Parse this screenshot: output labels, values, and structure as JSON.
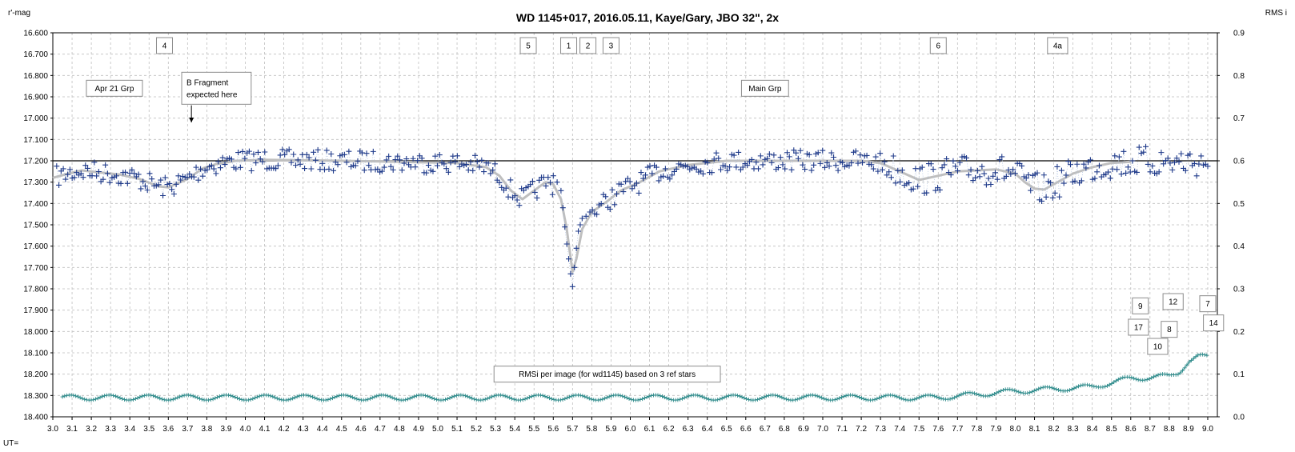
{
  "chart_data": {
    "type": "scatter",
    "title": "WD 1145+017,  2016.05.11,  Kaye/Gary,  JBO 32\", 2x",
    "ylabel": "r'-mag",
    "y2label": "RMS i",
    "xprefix": "UT=",
    "xlim": [
      3.0,
      9.05
    ],
    "ylim": [
      16.6,
      18.4
    ],
    "y_inverted": true,
    "y2lim": [
      0.0,
      0.9
    ],
    "grid": true,
    "x_ticks": [
      "3.0",
      "3.1",
      "3.2",
      "3.3",
      "3.4",
      "3.5",
      "3.6",
      "3.7",
      "3.8",
      "3.9",
      "4.0",
      "4.1",
      "4.2",
      "4.3",
      "4.4",
      "4.5",
      "4.6",
      "4.7",
      "4.8",
      "4.9",
      "5.0",
      "5.1",
      "5.2",
      "5.3",
      "5.4",
      "5.5",
      "5.6",
      "5.7",
      "5.8",
      "5.9",
      "6.0",
      "6.1",
      "6.2",
      "6.3",
      "6.4",
      "6.5",
      "6.6",
      "6.7",
      "6.8",
      "6.9",
      "7.0",
      "7.1",
      "7.2",
      "7.3",
      "7.4",
      "7.5",
      "7.6",
      "7.7",
      "7.8",
      "7.9",
      "8.0",
      "8.1",
      "8.2",
      "8.3",
      "8.4",
      "8.5",
      "8.6",
      "8.7",
      "8.8",
      "8.9",
      "9.0"
    ],
    "y_ticks": [
      "16.600",
      "16.700",
      "16.800",
      "16.900",
      "17.000",
      "17.100",
      "17.200",
      "17.300",
      "17.400",
      "17.500",
      "17.600",
      "17.700",
      "17.800",
      "17.900",
      "18.000",
      "18.100",
      "18.200",
      "18.300",
      "18.400"
    ],
    "y2_ticks": [
      "0.0",
      "0.1",
      "0.2",
      "0.3",
      "0.4",
      "0.5",
      "0.6",
      "0.7",
      "0.8",
      "0.9"
    ],
    "reference_line": 17.2,
    "smooth_fit": [
      [
        3.0,
        17.28
      ],
      [
        3.08,
        17.26
      ],
      [
        3.15,
        17.245
      ],
      [
        3.25,
        17.255
      ],
      [
        3.35,
        17.265
      ],
      [
        3.45,
        17.285
      ],
      [
        3.55,
        17.32
      ],
      [
        3.6,
        17.325
      ],
      [
        3.7,
        17.285
      ],
      [
        3.78,
        17.235
      ],
      [
        3.85,
        17.215
      ],
      [
        3.95,
        17.2
      ],
      [
        4.1,
        17.195
      ],
      [
        4.5,
        17.2
      ],
      [
        4.8,
        17.205
      ],
      [
        5.1,
        17.21
      ],
      [
        5.25,
        17.23
      ],
      [
        5.32,
        17.27
      ],
      [
        5.38,
        17.34
      ],
      [
        5.44,
        17.38
      ],
      [
        5.5,
        17.34
      ],
      [
        5.56,
        17.3
      ],
      [
        5.6,
        17.31
      ],
      [
        5.64,
        17.38
      ],
      [
        5.67,
        17.52
      ],
      [
        5.7,
        17.72
      ],
      [
        5.72,
        17.66
      ],
      [
        5.75,
        17.52
      ],
      [
        5.8,
        17.44
      ],
      [
        5.88,
        17.39
      ],
      [
        5.95,
        17.34
      ],
      [
        6.05,
        17.3
      ],
      [
        6.15,
        17.25
      ],
      [
        6.3,
        17.22
      ],
      [
        6.5,
        17.2
      ],
      [
        6.8,
        17.2
      ],
      [
        7.2,
        17.2
      ],
      [
        7.3,
        17.21
      ],
      [
        7.4,
        17.25
      ],
      [
        7.5,
        17.29
      ],
      [
        7.6,
        17.27
      ],
      [
        7.7,
        17.25
      ],
      [
        7.8,
        17.245
      ],
      [
        7.9,
        17.24
      ],
      [
        8.0,
        17.26
      ],
      [
        8.05,
        17.3
      ],
      [
        8.1,
        17.33
      ],
      [
        8.15,
        17.335
      ],
      [
        8.22,
        17.3
      ],
      [
        8.3,
        17.26
      ],
      [
        8.4,
        17.23
      ],
      [
        8.5,
        17.21
      ],
      [
        8.6,
        17.205
      ]
    ],
    "dip_points": [
      [
        5.6,
        17.27
      ],
      [
        5.62,
        17.3
      ],
      [
        5.64,
        17.34
      ],
      [
        5.65,
        17.42
      ],
      [
        5.66,
        17.51
      ],
      [
        5.67,
        17.59
      ],
      [
        5.68,
        17.66
      ],
      [
        5.69,
        17.73
      ],
      [
        5.7,
        17.79
      ],
      [
        5.71,
        17.7
      ],
      [
        5.72,
        17.61
      ],
      [
        5.73,
        17.53
      ],
      [
        5.74,
        17.5
      ],
      [
        5.75,
        17.47
      ],
      [
        5.77,
        17.46
      ],
      [
        5.79,
        17.44
      ]
    ],
    "rms_y_base": 0.045,
    "rms_trend": [
      [
        3.0,
        0.045
      ],
      [
        7.6,
        0.045
      ],
      [
        8.0,
        0.06
      ],
      [
        8.4,
        0.07
      ],
      [
        8.6,
        0.09
      ],
      [
        8.8,
        0.095
      ],
      [
        8.85,
        0.105
      ],
      [
        8.9,
        0.13
      ],
      [
        8.95,
        0.14
      ],
      [
        9.0,
        0.14
      ]
    ],
    "annotations": [
      {
        "text": "4",
        "x": 3.58,
        "y": 16.66
      },
      {
        "text": "5",
        "x": 5.47,
        "y": 16.66
      },
      {
        "text": "1",
        "x": 5.68,
        "y": 16.66
      },
      {
        "text": "2",
        "x": 5.78,
        "y": 16.66
      },
      {
        "text": "3",
        "x": 5.9,
        "y": 16.66
      },
      {
        "text": "6",
        "x": 7.6,
        "y": 16.66
      },
      {
        "text": "4a",
        "x": 8.22,
        "y": 16.66
      },
      {
        "text": "Apr 21 Grp",
        "x": 3.32,
        "y": 16.86
      },
      {
        "text": "B Fragment",
        "text2": "expected here",
        "x": 3.85,
        "y": 16.86
      },
      {
        "text": "Main Grp",
        "x": 6.7,
        "y": 16.86
      },
      {
        "text": "9",
        "x": 8.65,
        "y": 17.88
      },
      {
        "text": "12",
        "x": 8.82,
        "y": 17.86
      },
      {
        "text": "7",
        "x": 9.0,
        "y": 17.87
      },
      {
        "text": "17",
        "x": 8.64,
        "y": 17.98
      },
      {
        "text": "8",
        "x": 8.8,
        "y": 17.99
      },
      {
        "text": "14",
        "x": 9.03,
        "y": 17.96
      },
      {
        "text": "10",
        "x": 8.74,
        "y": 18.07
      },
      {
        "text": "RMSi per image (for wd1145) based on 3 ref stars",
        "x": 5.88,
        "y": 18.2
      }
    ],
    "arrow": {
      "x": 3.72,
      "y_from": 16.94,
      "y_to": 17.02
    },
    "colors": {
      "points": "#1f3a8a",
      "fit": "#bfbfbf",
      "rms": "#2e8b8b",
      "grid": "#bfbfbf"
    }
  }
}
